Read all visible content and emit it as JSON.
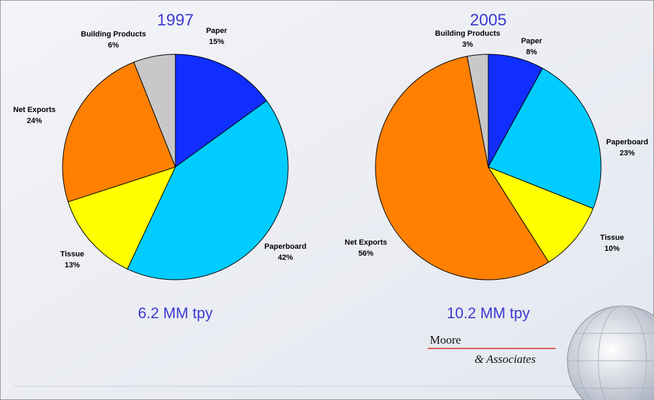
{
  "chart_data": [
    {
      "type": "pie",
      "title": "1997",
      "subtitle": "6.2 MM tpy",
      "categories": [
        "Paper",
        "Paperboard",
        "Tissue",
        "Net Exports",
        "Building Products"
      ],
      "values": [
        15,
        42,
        13,
        24,
        6
      ],
      "value_labels": [
        "15%",
        "42%",
        "13%",
        "24%",
        "6%"
      ],
      "colors": [
        "#0f2eff",
        "#00ccff",
        "#ffff00",
        "#ff8000",
        "#c8c8c8"
      ]
    },
    {
      "type": "pie",
      "title": "2005",
      "subtitle": "10.2 MM tpy",
      "categories": [
        "Paper",
        "Paperboard",
        "Tissue",
        "Net Exports",
        "Building Products"
      ],
      "values": [
        8,
        23,
        10,
        56,
        3
      ],
      "value_labels": [
        "8%",
        "23%",
        "10%",
        "56%",
        "3%"
      ],
      "colors": [
        "#0f2eff",
        "#00ccff",
        "#ffff00",
        "#ff8000",
        "#c8c8c8"
      ]
    }
  ],
  "logo": {
    "name": "Moore",
    "tagline": "& Associates"
  }
}
